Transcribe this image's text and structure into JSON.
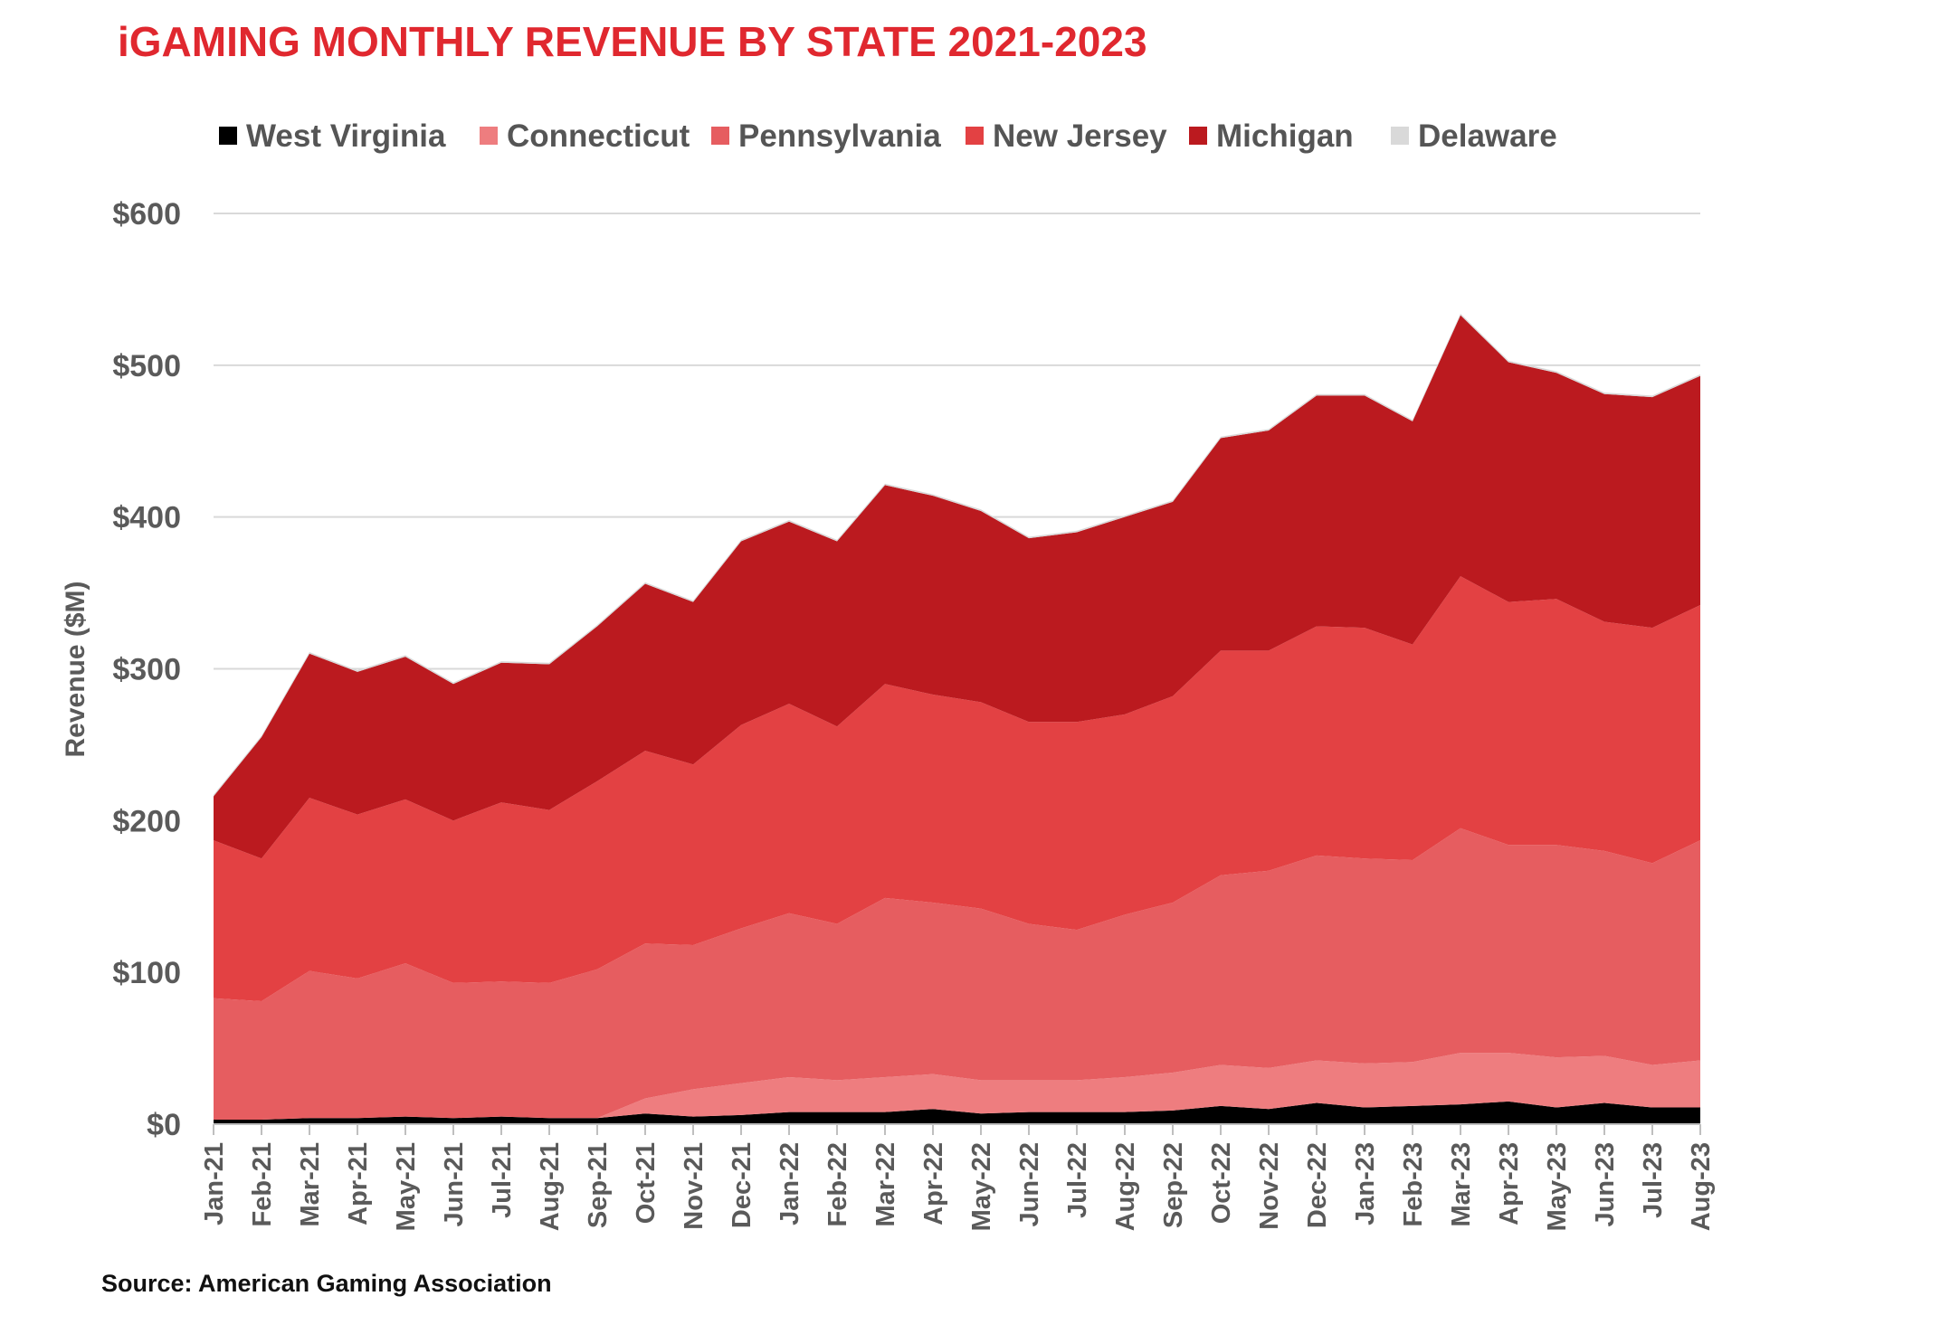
{
  "chart_data": {
    "type": "area",
    "stacked": true,
    "title": "iGAMING MONTHLY REVENUE BY STATE 2021-2023",
    "ylabel": "Revenue ($M)",
    "xlabel": "",
    "ylim": [
      0,
      600
    ],
    "yticks": [
      "$0",
      "$100",
      "$200",
      "$300",
      "$400",
      "$500",
      "$600"
    ],
    "y_tick_values": [
      0,
      100,
      200,
      300,
      400,
      500,
      600
    ],
    "grid": true,
    "legend_position": "top",
    "source": "Source: American Gaming Association",
    "x": [
      "Jan-21",
      "Feb-21",
      "Mar-21",
      "Apr-21",
      "May-21",
      "Jun-21",
      "Jul-21",
      "Aug-21",
      "Sep-21",
      "Oct-21",
      "Nov-21",
      "Dec-21",
      "Jan-22",
      "Feb-22",
      "Mar-22",
      "Apr-22",
      "May-22",
      "Jun-22",
      "Jul-22",
      "Aug-22",
      "Sep-22",
      "Oct-22",
      "Nov-22",
      "Dec-22",
      "Jan-23",
      "Feb-23",
      "Mar-23",
      "Apr-23",
      "May-23",
      "Jun-23",
      "Jul-23",
      "Aug-23"
    ],
    "series": [
      {
        "name": "West Virginia",
        "color": "#000000",
        "values": [
          3,
          3,
          4,
          4,
          5,
          4,
          5,
          4,
          4,
          7,
          5,
          6,
          8,
          8,
          8,
          10,
          7,
          8,
          8,
          8,
          9,
          12,
          10,
          14,
          11,
          12,
          13,
          15,
          11,
          14,
          11,
          11
        ]
      },
      {
        "name": "Connecticut",
        "color": "#ee7d7f",
        "values": [
          0,
          0,
          0,
          0,
          0,
          0,
          0,
          0,
          0,
          10,
          18,
          21,
          23,
          21,
          23,
          23,
          22,
          21,
          21,
          23,
          25,
          27,
          27,
          28,
          29,
          29,
          34,
          32,
          33,
          31,
          28,
          31
        ]
      },
      {
        "name": "Pennsylvania",
        "color": "#e65d60",
        "values": [
          80,
          78,
          97,
          92,
          101,
          89,
          89,
          89,
          98,
          102,
          95,
          102,
          108,
          103,
          118,
          113,
          113,
          103,
          99,
          107,
          112,
          125,
          130,
          135,
          135,
          133,
          148,
          137,
          140,
          135,
          133,
          145
        ]
      },
      {
        "name": "New Jersey",
        "color": "#e34143",
        "values": [
          104,
          94,
          114,
          108,
          108,
          107,
          118,
          114,
          124,
          127,
          119,
          134,
          138,
          130,
          141,
          137,
          136,
          133,
          137,
          132,
          136,
          148,
          145,
          151,
          152,
          142,
          166,
          160,
          162,
          151,
          155,
          155
        ]
      },
      {
        "name": "Michigan",
        "color": "#bb1a1f",
        "values": [
          29,
          80,
          95,
          94,
          94,
          90,
          92,
          96,
          102,
          110,
          107,
          121,
          120,
          122,
          131,
          131,
          126,
          121,
          125,
          130,
          128,
          140,
          145,
          152,
          153,
          147,
          172,
          158,
          149,
          150,
          152,
          151
        ]
      },
      {
        "name": "Delaware",
        "color": "#d9d9d9",
        "values": [
          1,
          1,
          1,
          1,
          1,
          1,
          1,
          1,
          1,
          1,
          1,
          1,
          1,
          1,
          1,
          1,
          1,
          1,
          1,
          1,
          1,
          1,
          1,
          1,
          1,
          1,
          1,
          1,
          1,
          1,
          1,
          1
        ]
      }
    ]
  }
}
